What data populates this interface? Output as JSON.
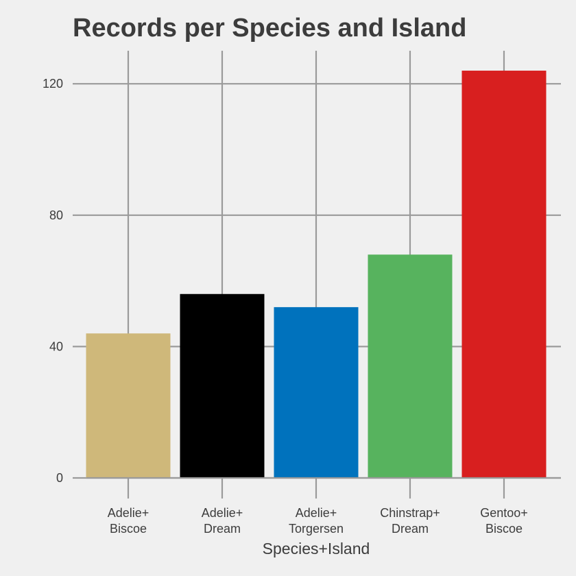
{
  "chart_data": {
    "type": "bar",
    "title": "Records per Species and Island",
    "xlabel": "Species+Island",
    "ylabel": "",
    "categories": [
      [
        "Adelie+",
        "Biscoe"
      ],
      [
        "Adelie+",
        "Dream"
      ],
      [
        "Adelie+",
        "Torgersen"
      ],
      [
        "Chinstrap+",
        "Dream"
      ],
      [
        "Gentoo+",
        "Biscoe"
      ]
    ],
    "values": [
      44,
      56,
      52,
      68,
      124
    ],
    "colors": [
      "#cfb87a",
      "#000000",
      "#0072bd",
      "#57b35e",
      "#d81f1f"
    ],
    "ylim": [
      0,
      130
    ],
    "yticks": [
      0,
      40,
      80,
      120
    ],
    "grid": true,
    "legend": "none"
  }
}
